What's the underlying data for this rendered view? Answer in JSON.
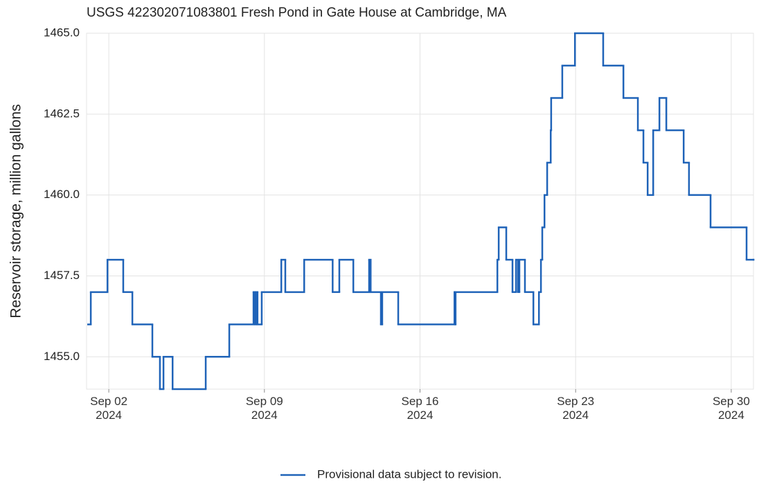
{
  "chart_data": {
    "type": "line",
    "step": "post",
    "title": "USGS 422302071083801 Fresh Pond in Gate House at Cambridge, MA",
    "y_label": "Reservoir storage, million gallons",
    "legend": "bottom",
    "grid": true,
    "xlim": [
      1,
      31
    ],
    "ylim": [
      1454,
      1465
    ],
    "xticks": [
      {
        "value": 2,
        "label": "Sep 02\n2024"
      },
      {
        "value": 9,
        "label": "Sep 09\n2024"
      },
      {
        "value": 16,
        "label": "Sep 16\n2024"
      },
      {
        "value": 23,
        "label": "Sep 23\n2024"
      },
      {
        "value": 30,
        "label": "Sep 30\n2024"
      }
    ],
    "yticks": [
      {
        "value": 1455,
        "label": "1455.0"
      },
      {
        "value": 1457.5,
        "label": "1457.5"
      },
      {
        "value": 1460,
        "label": "1460.0"
      },
      {
        "value": 1462.5,
        "label": "1462.5"
      },
      {
        "value": 1465,
        "label": "1465.0"
      }
    ],
    "x": [
      1.07,
      1.19,
      1.94,
      2.65,
      3.06,
      3.96,
      4.3,
      4.46,
      4.87,
      6.36,
      7.42,
      8.51,
      8.57,
      8.63,
      8.69,
      8.88,
      9.76,
      9.94,
      10.79,
      12.07,
      12.37,
      13.0,
      13.71,
      13.78,
      14.24,
      14.3,
      15.02,
      17.55,
      17.58,
      17.6,
      19.48,
      19.54,
      19.88,
      20.16,
      20.32,
      20.41,
      20.47,
      20.72,
      21.1,
      21.35,
      21.44,
      21.5,
      21.6,
      21.72,
      21.88,
      21.9,
      22.4,
      22.97,
      24.24,
      25.15,
      25.8,
      26.05,
      26.24,
      26.49,
      26.77,
      27.08,
      27.86,
      28.1,
      29.07,
      30.69,
      31.0
    ],
    "series": [
      {
        "name": "Provisional data subject to revision.",
        "color": "#1f63b8",
        "values": [
          1456,
          1457,
          1458,
          1457,
          1456,
          1455,
          1454,
          1455,
          1454,
          1455,
          1456,
          1457,
          1456,
          1457,
          1456,
          1457,
          1458,
          1457,
          1458,
          1457,
          1458,
          1457,
          1458,
          1457,
          1456,
          1457,
          1456,
          1457,
          1456,
          1457,
          1458,
          1459,
          1458,
          1457,
          1458,
          1457,
          1458,
          1457,
          1456,
          1457,
          1458,
          1459,
          1460,
          1461,
          1462,
          1463,
          1464,
          1465,
          1464,
          1463,
          1462,
          1461,
          1460,
          1462,
          1463,
          1462,
          1461,
          1460,
          1459,
          1458,
          1458
        ]
      }
    ]
  }
}
